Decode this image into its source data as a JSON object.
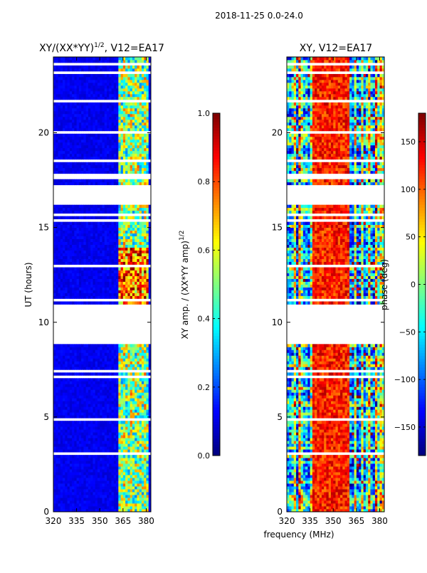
{
  "figure": {
    "suptitle": "2018-11-25 0.0-24.0",
    "xlabel_shared": "frequency (MHz)"
  },
  "chart_data": [
    {
      "type": "heatmap",
      "title_prefix": "XY/(XX*YY)",
      "title_exponent": "1/2",
      "title_suffix": ", V12=EA17",
      "xlabel": "",
      "ylabel": "UT (hours)",
      "x_range": [
        320,
        383
      ],
      "y_range": [
        0,
        24
      ],
      "x_ticks": [
        320,
        335,
        350,
        365,
        380
      ],
      "y_ticks": [
        0,
        5,
        10,
        15,
        20
      ],
      "colormap": "jet",
      "colorbar": {
        "label_prefix": "XY amp. / (XX*YY amp)",
        "label_exponent": "1/2",
        "range": [
          0.0,
          1.0
        ],
        "ticks": [
          "0.0",
          "0.2",
          "0.4",
          "0.6",
          "0.8",
          "1.0"
        ],
        "tick_values": [
          0.0,
          0.2,
          0.4,
          0.6,
          0.8,
          1.0
        ]
      },
      "data_gaps_hours": [
        [
          9.0,
          11.0
        ],
        [
          16.2,
          17.2
        ],
        [
          17.6,
          17.9
        ]
      ],
      "description_values": {
        "background_level": 0.08,
        "rfi_band_MHz": [
          362,
          382
        ],
        "rfi_level_range": [
          0.25,
          0.95
        ]
      }
    },
    {
      "type": "heatmap",
      "title": "XY, V12=EA17",
      "xlabel": "frequency (MHz)",
      "ylabel": "",
      "x_range": [
        320,
        383
      ],
      "y_range": [
        0,
        24
      ],
      "x_ticks": [
        320,
        335,
        350,
        365,
        380
      ],
      "y_ticks": [
        0,
        5,
        10,
        15,
        20
      ],
      "colormap": "jet",
      "colorbar": {
        "label": "phase (deg)",
        "range": [
          -180,
          180
        ],
        "ticks": [
          "−150",
          "−100",
          "−50",
          "0",
          "50",
          "100",
          "150"
        ],
        "tick_values": [
          -150,
          -100,
          -50,
          0,
          50,
          100,
          150
        ]
      },
      "data_gaps_hours": [
        [
          9.0,
          11.0
        ],
        [
          16.2,
          17.2
        ],
        [
          17.6,
          17.9
        ]
      ]
    }
  ]
}
